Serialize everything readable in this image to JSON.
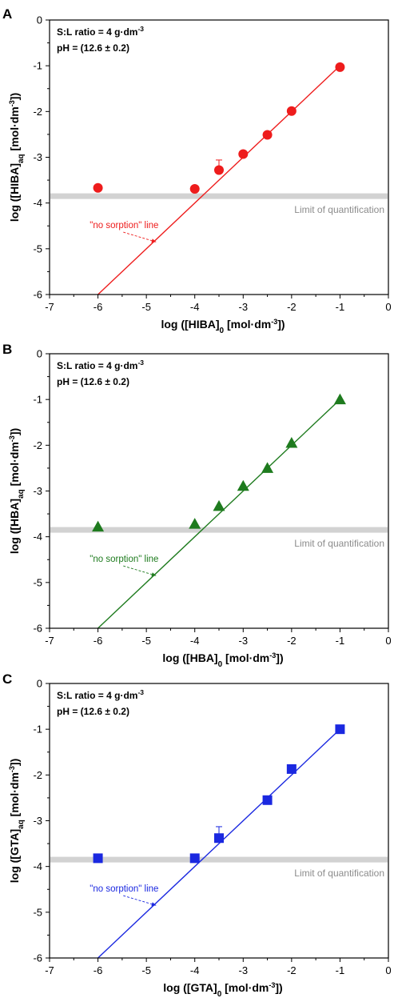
{
  "chart_data": [
    {
      "panel": "A",
      "type": "scatter",
      "xlim": [
        -7,
        0
      ],
      "ylim": [
        -6,
        0
      ],
      "xticks": [
        "-7",
        "-6",
        "-5",
        "-4",
        "-3",
        "-2",
        "-1",
        "0"
      ],
      "yticks": [
        "0",
        "-1",
        "-2",
        "-3",
        "-4",
        "-5",
        "-6"
      ],
      "xlabel": {
        "pre": "log ([HIBA]",
        "sub": "0",
        "mid": " [mol·dm",
        "sup": "-3",
        "post": "])"
      },
      "ylabel": {
        "pre": "log ([HIBA]",
        "sub": "aq",
        "mid": " [mol·dm",
        "sup": "-3",
        "post": "])"
      },
      "annotations": {
        "sl_ratio": "S:L ratio = 4 g·dm",
        "sl_sup": "-3",
        "ph": "pH = (12.6 ± 0.2)"
      },
      "limit_label": "Limit of quantification",
      "limit_y": -3.85,
      "line_label": "\"no sorption\" line",
      "line_x": [
        -6,
        -1
      ],
      "line_y": [
        -6,
        -1
      ],
      "marker": "circle",
      "color": "#ee1c1c",
      "x": [
        -6,
        -4,
        -3.5,
        -3,
        -2.5,
        -2,
        -1
      ],
      "y": [
        -3.67,
        -3.69,
        -3.28,
        -2.93,
        -2.51,
        -1.99,
        -1.03
      ],
      "error_y": [
        0,
        0,
        0.22,
        0,
        0,
        0,
        0
      ]
    },
    {
      "panel": "B",
      "type": "scatter",
      "xlim": [
        -7,
        0
      ],
      "ylim": [
        -6,
        0
      ],
      "xticks": [
        "-7",
        "-6",
        "-5",
        "-4",
        "-3",
        "-2",
        "-1",
        "0"
      ],
      "yticks": [
        "0",
        "-1",
        "-2",
        "-3",
        "-4",
        "-5",
        "-6"
      ],
      "xlabel": {
        "pre": "log ([HBA]",
        "sub": "0",
        "mid": " [mol·dm",
        "sup": "-3",
        "post": "])"
      },
      "ylabel": {
        "pre": "log ([HBA]",
        "sub": "aq",
        "mid": " [mol·dm",
        "sup": "-3",
        "post": "])"
      },
      "annotations": {
        "sl_ratio": "S:L ratio = 4 g·dm",
        "sl_sup": "-3",
        "ph": "pH = (12.6 ± 0.2)"
      },
      "limit_label": "Limit of quantification",
      "limit_y": -3.85,
      "line_label": "\"no sorption\" line",
      "line_x": [
        -6,
        -1
      ],
      "line_y": [
        -6,
        -1
      ],
      "marker": "triangle",
      "color": "#1e7b1e",
      "x": [
        -6,
        -4,
        -3.5,
        -3,
        -2.5,
        -2,
        -1
      ],
      "y": [
        -3.78,
        -3.72,
        -3.33,
        -2.89,
        -2.5,
        -1.95,
        -1.0
      ],
      "error_y": [
        0,
        0,
        0,
        0,
        0,
        0,
        0
      ]
    },
    {
      "panel": "C",
      "type": "scatter",
      "xlim": [
        -7,
        0
      ],
      "ylim": [
        -6,
        0
      ],
      "xticks": [
        "-7",
        "-6",
        "-5",
        "-4",
        "-3",
        "-2",
        "-1",
        "0"
      ],
      "yticks": [
        "0",
        "-1",
        "-2",
        "-3",
        "-4",
        "-5",
        "-6"
      ],
      "xlabel": {
        "pre": "log ([GTA]",
        "sub": "0",
        "mid": " [mol·dm",
        "sup": "-3",
        "post": "])"
      },
      "ylabel": {
        "pre": "log ([GTA]",
        "sub": "aq",
        "mid": " [mol·dm",
        "sup": "-3",
        "post": "])"
      },
      "annotations": {
        "sl_ratio": "S:L ratio = 4 g·dm",
        "sl_sup": "-3",
        "ph": "pH = (12.6 ± 0.2)"
      },
      "limit_label": "Limit of quantification",
      "limit_y": -3.85,
      "line_label": "\"no sorption\" line",
      "line_x": [
        -6,
        -1
      ],
      "line_y": [
        -6,
        -1
      ],
      "marker": "square",
      "color": "#1a28e0",
      "x": [
        -6,
        -4,
        -3.5,
        -2.5,
        -2,
        -1
      ],
      "y": [
        -3.82,
        -3.82,
        -3.38,
        -2.55,
        -1.87,
        -1.0
      ],
      "error_y": [
        0,
        0,
        0.25,
        0,
        0,
        0
      ]
    }
  ]
}
